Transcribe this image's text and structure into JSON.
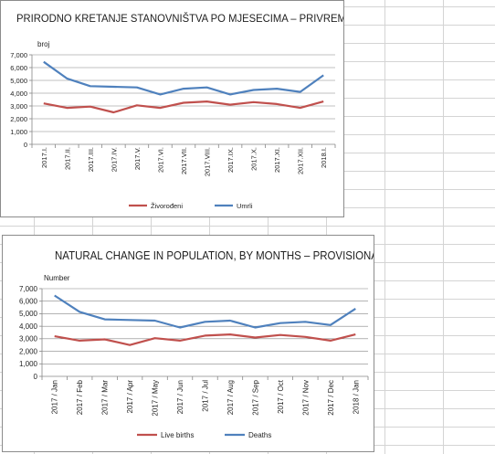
{
  "colors": {
    "births": "#c0504d",
    "deaths": "#4f81bd",
    "axis": "#868686",
    "grid": "#868686"
  },
  "chart_data": [
    {
      "type": "line",
      "title": "PRIRODNO KRETANJE STANOVNIŠTVA PO MJESECIMA – PRIVREMENI PODACI",
      "ylabel": "broj",
      "xlabel": "",
      "ylim": [
        0,
        7000
      ],
      "yticks": [
        "0",
        "1,000",
        "2,000",
        "3,000",
        "4,000",
        "5,000",
        "6,000",
        "7,000"
      ],
      "grid": true,
      "legend_position": "bottom",
      "categories": [
        "2017.I.",
        "2017.II.",
        "2017.III.",
        "2017.IV.",
        "2017.V.",
        "2017.VI.",
        "2017.VII.",
        "2017.VIII.",
        "2017.IX.",
        "2017.X.",
        "2017.XI.",
        "2017.XII.",
        "2018.I."
      ],
      "series": [
        {
          "name": "Živorođeni",
          "values": [
            3200,
            2850,
            2950,
            2500,
            3050,
            2850,
            3250,
            3350,
            3100,
            3300,
            3150,
            2850,
            3350
          ]
        },
        {
          "name": "Umrli",
          "values": [
            6450,
            5150,
            4550,
            4500,
            4450,
            3900,
            4350,
            4450,
            3900,
            4250,
            4350,
            4100,
            5400
          ]
        }
      ]
    },
    {
      "type": "line",
      "title": "NATURAL CHANGE IN POPULATION, BY MONTHS – PROVISIONAL DATA",
      "ylabel": "Number",
      "xlabel": "",
      "ylim": [
        0,
        7000
      ],
      "yticks": [
        "0",
        "1,000",
        "2,000",
        "3,000",
        "4,000",
        "5,000",
        "6,000",
        "7,000"
      ],
      "grid": true,
      "legend_position": "bottom",
      "categories": [
        "2017 / Jan",
        "2017 / Feb",
        "2017 / Mar",
        "2017 / Apr",
        "2017 / May",
        "2017 / Jun",
        "2017 / Jul",
        "2017 / Aug",
        "2017 / Sep",
        "2017 / Oct",
        "2017 / Nov",
        "2017 / Dec",
        "2018 / Jan"
      ],
      "series": [
        {
          "name": "Live births",
          "values": [
            3200,
            2850,
            2950,
            2500,
            3050,
            2850,
            3250,
            3350,
            3100,
            3300,
            3150,
            2850,
            3350
          ]
        },
        {
          "name": "Deaths",
          "values": [
            6450,
            5150,
            4550,
            4500,
            4450,
            3900,
            4350,
            4450,
            3900,
            4250,
            4350,
            4100,
            5400
          ]
        }
      ]
    }
  ]
}
